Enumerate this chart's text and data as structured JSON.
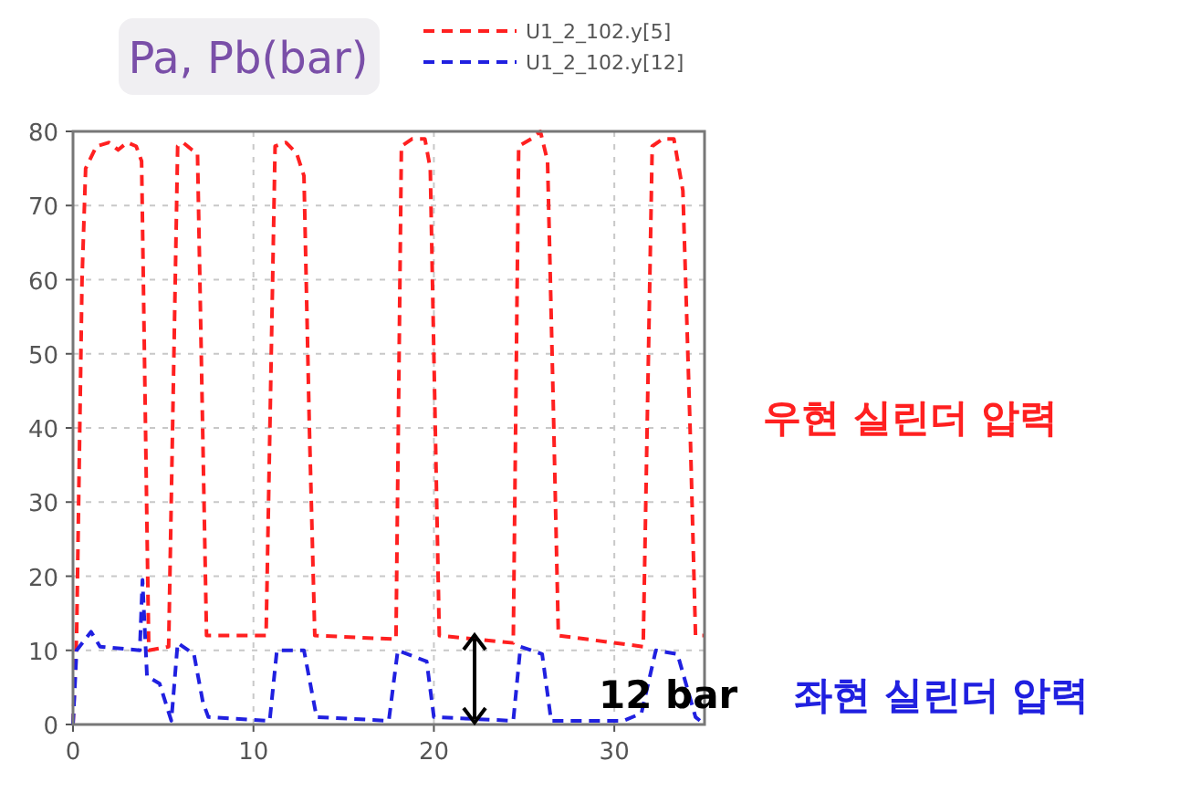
{
  "chart_data": {
    "type": "line",
    "ylabel": "Pa, Pb(bar)",
    "xlim": [
      0,
      35
    ],
    "ylim": [
      0,
      80
    ],
    "xticks": [
      0,
      10,
      20,
      30
    ],
    "yticks": [
      0,
      10,
      20,
      30,
      40,
      50,
      60,
      70,
      80
    ],
    "grid": true,
    "legend": "top right",
    "line_style": "dashed",
    "marker": "none",
    "series": [
      {
        "name": "U1_2_102.y[5]",
        "color": "#ff2020",
        "x": [
          0,
          0.2,
          0.5,
          0.7,
          1.3,
          2,
          2.5,
          3,
          3.5,
          3.8,
          4.2,
          5.3,
          5.8,
          6.1,
          6.6,
          6.9,
          7.4,
          10.7,
          11.2,
          11.8,
          12.4,
          12.8,
          13.1,
          13.4,
          17.9,
          18.2,
          18.8,
          19.5,
          19.8,
          20.3,
          24.4,
          24.7,
          25.4,
          25.9,
          26.3,
          26.6,
          26.9,
          31.6,
          32.1,
          32.7,
          33.3,
          33.8,
          34.2,
          34.5,
          35
        ],
        "values": [
          0,
          12,
          60,
          75,
          78,
          78.5,
          77.5,
          78.5,
          78,
          76,
          10,
          10.5,
          78,
          78.5,
          77.5,
          77,
          12,
          12,
          78,
          78.5,
          77,
          74,
          40,
          12,
          11.5,
          78,
          79,
          79,
          75,
          12,
          11,
          78,
          79,
          80,
          76,
          45,
          12,
          10.5,
          78,
          79,
          79,
          72,
          40,
          12,
          12
        ]
      },
      {
        "name": "U1_2_102.y[12]",
        "color": "#2020e0",
        "x": [
          0,
          0.2,
          1,
          1.5,
          3.7,
          3.85,
          4.1,
          4.8,
          5.45,
          5.8,
          6.7,
          7.2,
          7.5,
          10.9,
          11.3,
          11.6,
          12.8,
          13.5,
          17.5,
          18,
          19.6,
          20,
          24.4,
          24.8,
          26,
          26.5,
          30.5,
          31.5,
          32.3,
          33.5,
          34.5,
          35
        ],
        "values": [
          0,
          10,
          12.5,
          10.5,
          10,
          19.5,
          6.5,
          5.5,
          0.5,
          11,
          9.5,
          3,
          1,
          0.5,
          10,
          10,
          10,
          1,
          0.5,
          10,
          8.5,
          1,
          0.5,
          10.5,
          9.5,
          0.5,
          0.5,
          1.5,
          10,
          9.5,
          1,
          0
        ]
      }
    ],
    "annotations": [
      "우현 실린더 압력",
      "12 bar",
      "좌현 실린더 압력"
    ]
  }
}
